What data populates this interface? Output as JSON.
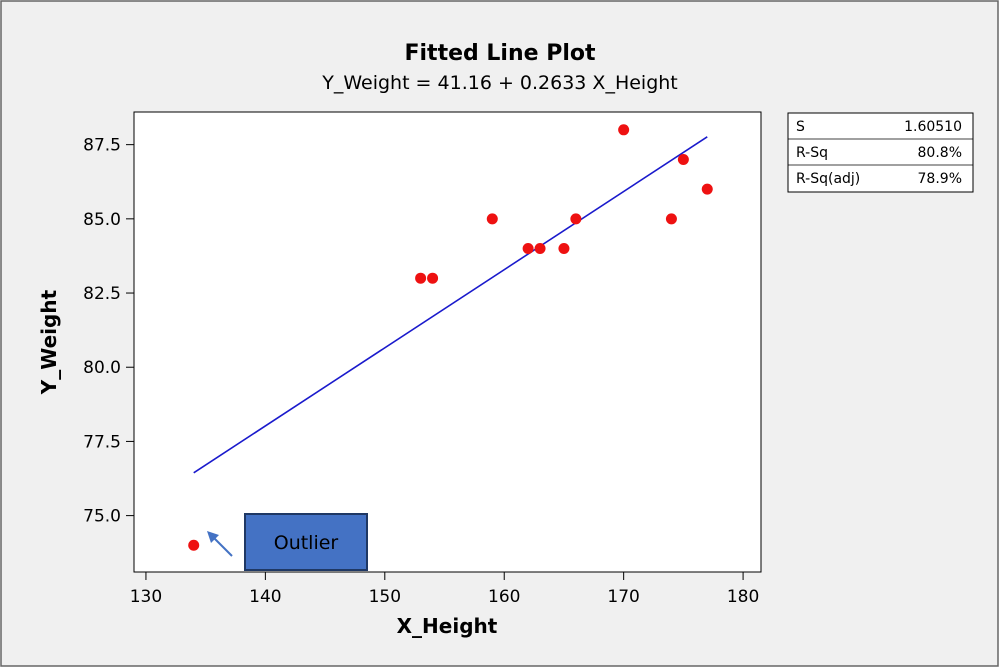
{
  "chart_data": {
    "type": "scatter",
    "title": "Fitted Line Plot",
    "subtitle": "Y_Weight =  41.16 + 0.2633 X_Height",
    "xlabel": "X_Height",
    "ylabel": "Y_Weight",
    "xlim": [
      129,
      181.5
    ],
    "ylim": [
      73.1,
      88.6
    ],
    "x_ticks": [
      130,
      140,
      150,
      160,
      170,
      180
    ],
    "y_ticks": [
      75.0,
      77.5,
      80.0,
      82.5,
      85.0,
      87.5
    ],
    "y_tick_labels": [
      "75.0",
      "77.5",
      "80.0",
      "82.5",
      "85.0",
      "87.5"
    ],
    "grid": false,
    "points": [
      {
        "x": 134,
        "y": 74
      },
      {
        "x": 153,
        "y": 83
      },
      {
        "x": 154,
        "y": 83
      },
      {
        "x": 159,
        "y": 85
      },
      {
        "x": 162,
        "y": 84
      },
      {
        "x": 163,
        "y": 84
      },
      {
        "x": 165,
        "y": 84
      },
      {
        "x": 166,
        "y": 85
      },
      {
        "x": 170,
        "y": 88
      },
      {
        "x": 174,
        "y": 85
      },
      {
        "x": 175,
        "y": 87
      },
      {
        "x": 177,
        "y": 86
      }
    ],
    "fit": {
      "intercept": 41.16,
      "slope": 0.2633,
      "x_range": [
        134,
        177
      ]
    },
    "stats": [
      {
        "label": "S",
        "value": "1.60510"
      },
      {
        "label": "R-Sq",
        "value": "80.8%"
      },
      {
        "label": "R-Sq(adj)",
        "value": "78.9%"
      }
    ],
    "annotation": {
      "text": "Outlier",
      "points_to": {
        "x": 134,
        "y": 74
      }
    },
    "colors": {
      "point": "#ee1111",
      "line": "#1a1acc",
      "annotation_fill": "#4472c4",
      "annotation_border": "#1f3864",
      "panel_bg": "#f0f0f0"
    }
  }
}
